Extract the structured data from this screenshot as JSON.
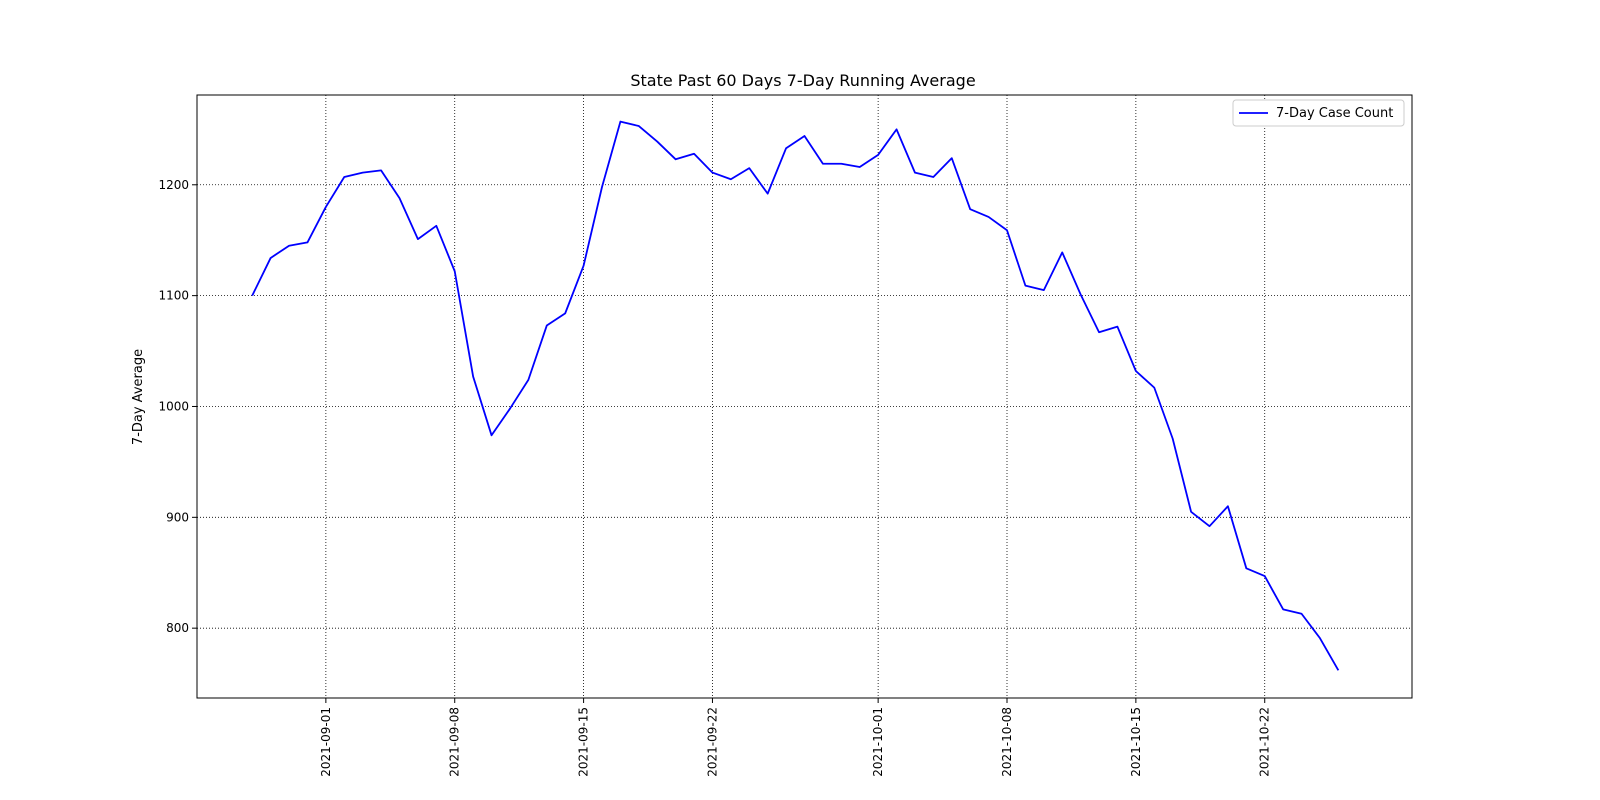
{
  "chart_data": {
    "type": "line",
    "title": "State Past 60 Days 7-Day Running Average",
    "xlabel": "",
    "ylabel": "7-Day Average",
    "x_start_date": "2021-08-28",
    "x_tick_labels": [
      "2021-09-01",
      "2021-09-08",
      "2021-09-15",
      "2021-09-22",
      "2021-10-01",
      "2021-10-08",
      "2021-10-15",
      "2021-10-22"
    ],
    "y_ticks": [
      800,
      900,
      1000,
      1100,
      1200
    ],
    "xlim": [
      "2021-08-25",
      "2021-10-30"
    ],
    "ylim": [
      737,
      1281
    ],
    "grid": true,
    "legend_position": "top-right",
    "series": [
      {
        "name": "7-Day Case Count",
        "color": "#0000ff",
        "values": [
          1100,
          1134,
          1145,
          1148,
          1180,
          1207,
          1211,
          1213,
          1188,
          1151,
          1163,
          1122,
          1027,
          974,
          998,
          1024,
          1073,
          1084,
          1127,
          1198,
          1257,
          1253,
          1239,
          1223,
          1228,
          1211,
          1205,
          1215,
          1192,
          1233,
          1244,
          1219,
          1219,
          1216,
          1227,
          1250,
          1211,
          1207,
          1224,
          1178,
          1171,
          1159,
          1109,
          1105,
          1139,
          1101,
          1067,
          1072,
          1032,
          1017,
          971,
          905,
          892,
          910,
          854,
          847,
          817,
          813,
          791,
          762
        ]
      }
    ]
  }
}
